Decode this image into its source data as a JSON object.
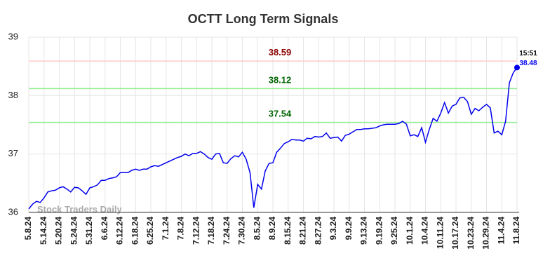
{
  "chart_data": {
    "type": "line",
    "title": "OCTT Long Term Signals",
    "watermark": "Stock Traders Daily",
    "color": "#0000ee",
    "categories": [
      "5.8.24",
      null,
      null,
      null,
      "5.14.24",
      null,
      null,
      null,
      "5.20.24",
      null,
      null,
      null,
      "5.24.24",
      null,
      null,
      null,
      "5.31.24",
      null,
      null,
      null,
      "6.6.24",
      null,
      null,
      null,
      "6.12.24",
      null,
      null,
      null,
      "6.18.24",
      null,
      null,
      null,
      "6.25.24",
      null,
      null,
      null,
      "7.1.24",
      null,
      null,
      null,
      "7.8.24",
      null,
      null,
      null,
      "7.12.24",
      null,
      null,
      null,
      "7.18.24",
      null,
      null,
      null,
      "7.24.24",
      null,
      null,
      null,
      "7.30.24",
      null,
      null,
      null,
      "8.5.24",
      null,
      null,
      null,
      "8.9.24",
      null,
      null,
      null,
      "8.15.24",
      null,
      null,
      null,
      "8.21.24",
      null,
      null,
      null,
      "8.27.24",
      null,
      null,
      null,
      "9.3.24",
      null,
      null,
      null,
      "9.9.24",
      null,
      null,
      null,
      "9.13.24",
      null,
      null,
      null,
      "9.19.24",
      null,
      null,
      null,
      "9.25.24",
      null,
      null,
      null,
      "10.1.24",
      null,
      null,
      null,
      "10.4.24",
      null,
      null,
      null,
      "10.11.24",
      null,
      null,
      null,
      "10.17.24",
      null,
      null,
      null,
      "10.23.24",
      null,
      null,
      null,
      "10.29.24",
      null,
      null,
      null,
      "11.4.24",
      null,
      null,
      null,
      "11.8.24"
    ],
    "values": [
      36.06,
      36.14,
      36.19,
      36.17,
      36.25,
      36.35,
      36.37,
      36.38,
      36.42,
      36.44,
      36.4,
      36.35,
      36.43,
      36.42,
      36.37,
      36.31,
      36.42,
      36.44,
      36.47,
      36.55,
      36.55,
      36.58,
      36.59,
      36.61,
      36.68,
      36.68,
      36.68,
      36.72,
      36.74,
      36.72,
      36.74,
      36.74,
      36.78,
      36.8,
      36.79,
      36.82,
      36.85,
      36.88,
      36.91,
      36.94,
      36.96,
      37.0,
      36.97,
      37.01,
      37.01,
      37.04,
      37.0,
      36.94,
      36.91,
      37.0,
      37.01,
      36.85,
      36.84,
      36.92,
      36.97,
      36.95,
      37.03,
      36.91,
      36.68,
      36.08,
      36.48,
      36.4,
      36.71,
      36.84,
      36.85,
      37.03,
      37.1,
      37.18,
      37.21,
      37.25,
      37.24,
      37.24,
      37.22,
      37.27,
      37.26,
      37.3,
      37.29,
      37.3,
      37.36,
      37.27,
      37.28,
      37.29,
      37.22,
      37.32,
      37.34,
      37.38,
      37.42,
      37.42,
      37.43,
      37.43,
      37.44,
      37.45,
      37.48,
      37.5,
      37.51,
      37.51,
      37.51,
      37.52,
      37.56,
      37.51,
      37.31,
      37.33,
      37.3,
      37.45,
      37.2,
      37.42,
      37.61,
      37.56,
      37.7,
      37.88,
      37.7,
      37.82,
      37.85,
      37.96,
      37.97,
      37.9,
      37.68,
      37.78,
      37.74,
      37.8,
      37.85,
      37.79,
      37.36,
      37.39,
      37.33,
      37.56,
      38.22,
      38.39,
      38.48
    ],
    "last_time": "15:51",
    "ylim": [
      36,
      39
    ],
    "yticks": [
      36,
      37,
      38,
      39
    ],
    "grid": true,
    "hlines": [
      {
        "value": 38.59,
        "color": "#ffcccc",
        "text_color": "#8b0000"
      },
      {
        "value": 38.12,
        "color": "#90ee90",
        "text_color": "#006400"
      },
      {
        "value": 37.54,
        "color": "#90ee90",
        "text_color": "#006400"
      }
    ]
  }
}
